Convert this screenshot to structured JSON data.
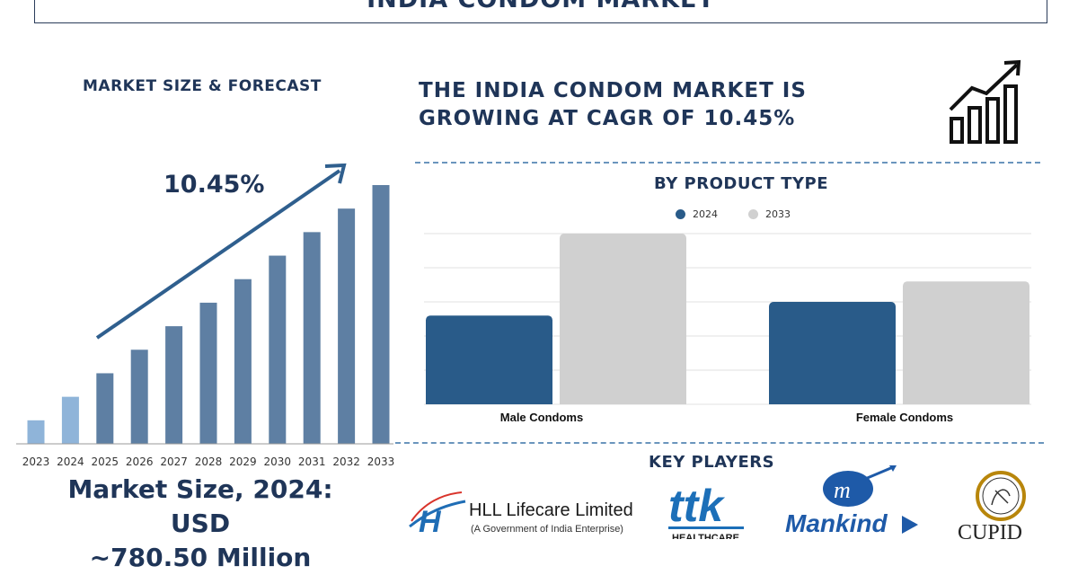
{
  "header": {
    "title": "INDIA CONDOM MARKET"
  },
  "left": {
    "heading": "MARKET SIZE & FORECAST",
    "cagr_label": "10.45%",
    "market_size_line1": "Market Size, 2024: USD",
    "market_size_line2": "~780.50 Million"
  },
  "right": {
    "headline_line1": "THE INDIA CONDOM MARKET IS",
    "headline_line2": "GROWING AT CAGR OF 10.45%",
    "product_heading": "BY PRODUCT TYPE",
    "key_players_heading": "KEY PLAYERS"
  },
  "icons": [
    "growth-chart-icon",
    "trend-arrow-icon"
  ],
  "logos": [
    {
      "name": "HLL Lifecare Limited",
      "subtitle": "(A Government of India Enterprise)"
    },
    {
      "name": "ttk",
      "subtitle": "HEALTHCARE"
    },
    {
      "name": "Mankind",
      "subtitle": ""
    },
    {
      "name": "CUPID",
      "subtitle": ""
    }
  ],
  "colors": {
    "navy": "#1f3558",
    "bar_light": "#8fb4d9",
    "bar_mid": "#5e7fa3",
    "series_2024": "#295b89",
    "series_2033": "#d0d0d0"
  },
  "chart_data": [
    {
      "type": "bar",
      "title": "MARKET SIZE & FORECAST",
      "categories": [
        "2023",
        "2024",
        "2025",
        "2026",
        "2027",
        "2028",
        "2029",
        "2030",
        "2031",
        "2032",
        "2033"
      ],
      "values": [
        1.0,
        2.0,
        3.0,
        4.0,
        5.0,
        6.0,
        7.0,
        8.0,
        9.0,
        10.0,
        11.0
      ],
      "highlight_light": [
        "2023",
        "2024"
      ],
      "annotation": "10.45%",
      "grid": false
    },
    {
      "type": "bar",
      "title": "BY PRODUCT TYPE",
      "categories": [
        "Male Condoms",
        "Female Condoms"
      ],
      "series": [
        {
          "name": "2024",
          "values": [
            2.6,
            3.0
          ]
        },
        {
          "name": "2033",
          "values": [
            5.0,
            3.6
          ]
        }
      ],
      "ylim": [
        0,
        5
      ],
      "grid": true,
      "legend": "top"
    }
  ]
}
